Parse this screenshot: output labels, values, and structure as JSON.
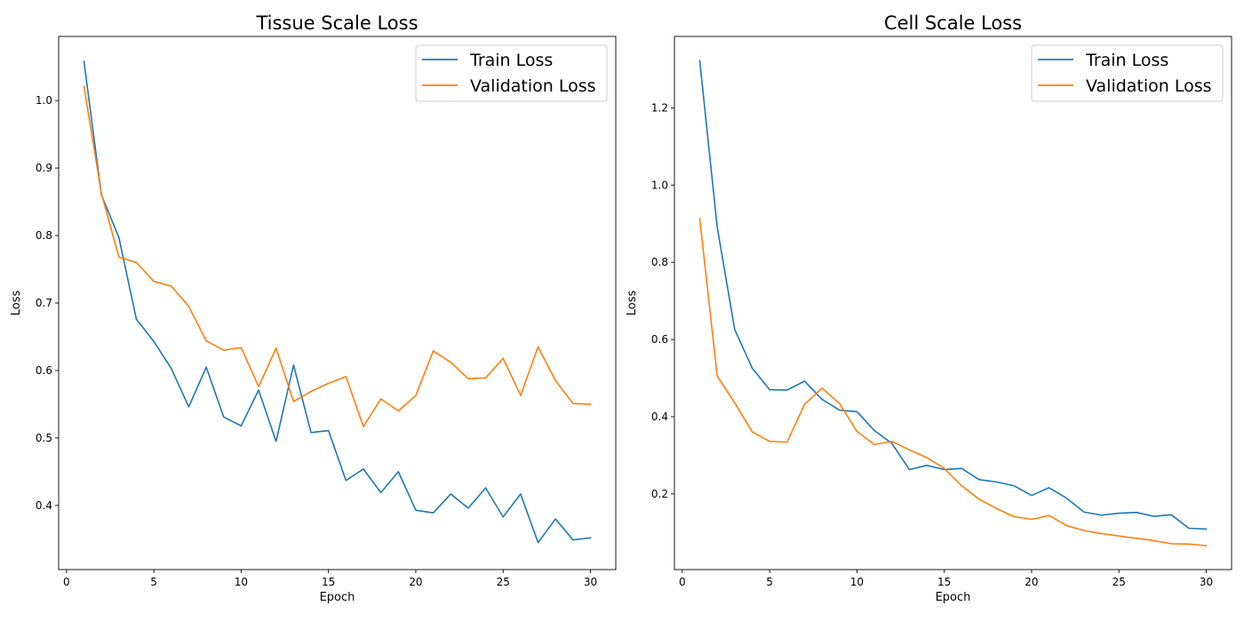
{
  "figure": {
    "background": "#ffffff"
  },
  "chart_data": [
    {
      "type": "line",
      "title": "Tissue Scale Loss",
      "xlabel": "Epoch",
      "ylabel": "Loss",
      "xlim": [
        -0.45,
        31.45
      ],
      "ylim": [
        0.305,
        1.095
      ],
      "xticks": [
        0,
        5,
        10,
        15,
        20,
        25,
        30
      ],
      "yticks": [
        0.4,
        0.5,
        0.6,
        0.7,
        0.8,
        0.9,
        1.0
      ],
      "ytick_labels": [
        "0.4",
        "0.5",
        "0.6",
        "0.7",
        "0.8",
        "0.9",
        "1.0"
      ],
      "grid": false,
      "legend_position": "upper right",
      "x": [
        1,
        2,
        3,
        4,
        5,
        6,
        7,
        8,
        9,
        10,
        11,
        12,
        13,
        14,
        15,
        16,
        17,
        18,
        19,
        20,
        21,
        22,
        23,
        24,
        25,
        26,
        27,
        28,
        29,
        30
      ],
      "series": [
        {
          "name": "Train Loss",
          "color": "#1f77b4",
          "values": [
            1.058,
            0.86,
            0.797,
            0.676,
            0.643,
            0.603,
            0.546,
            0.605,
            0.531,
            0.518,
            0.571,
            0.495,
            0.608,
            0.508,
            0.511,
            0.437,
            0.454,
            0.419,
            0.45,
            0.393,
            0.389,
            0.417,
            0.396,
            0.426,
            0.383,
            0.417,
            0.345,
            0.38,
            0.349,
            0.352
          ]
        },
        {
          "name": "Validation Loss",
          "color": "#ff7f0e",
          "values": [
            1.021,
            0.862,
            0.768,
            0.76,
            0.732,
            0.725,
            0.695,
            0.644,
            0.63,
            0.634,
            0.576,
            0.633,
            0.554,
            0.569,
            0.581,
            0.591,
            0.517,
            0.558,
            0.54,
            0.563,
            0.629,
            0.612,
            0.588,
            0.589,
            0.618,
            0.563,
            0.635,
            0.585,
            0.551,
            0.55
          ]
        }
      ]
    },
    {
      "type": "line",
      "title": "Cell Scale Loss",
      "xlabel": "Epoch",
      "ylabel": "Loss",
      "xlim": [
        -0.45,
        31.45
      ],
      "ylim": [
        0.004,
        1.385
      ],
      "xticks": [
        0,
        5,
        10,
        15,
        20,
        25,
        30
      ],
      "yticks": [
        0.2,
        0.4,
        0.6,
        0.8,
        1.0,
        1.2
      ],
      "ytick_labels": [
        "0.2",
        "0.4",
        "0.6",
        "0.8",
        "1.0",
        "1.2"
      ],
      "grid": false,
      "legend_position": "upper right",
      "x": [
        1,
        2,
        3,
        4,
        5,
        6,
        7,
        8,
        9,
        10,
        11,
        12,
        13,
        14,
        15,
        16,
        17,
        18,
        19,
        20,
        21,
        22,
        23,
        24,
        25,
        26,
        27,
        28,
        29,
        30
      ],
      "series": [
        {
          "name": "Train Loss",
          "color": "#1f77b4",
          "values": [
            1.322,
            0.891,
            0.626,
            0.526,
            0.47,
            0.469,
            0.492,
            0.445,
            0.417,
            0.413,
            0.364,
            0.331,
            0.263,
            0.274,
            0.263,
            0.266,
            0.237,
            0.231,
            0.221,
            0.196,
            0.216,
            0.189,
            0.153,
            0.145,
            0.15,
            0.152,
            0.142,
            0.146,
            0.111,
            0.109
          ]
        },
        {
          "name": "Validation Loss",
          "color": "#ff7f0e",
          "values": [
            0.913,
            0.505,
            0.436,
            0.361,
            0.336,
            0.334,
            0.432,
            0.474,
            0.434,
            0.362,
            0.328,
            0.336,
            0.314,
            0.294,
            0.266,
            0.221,
            0.186,
            0.162,
            0.141,
            0.134,
            0.144,
            0.118,
            0.105,
            0.097,
            0.091,
            0.085,
            0.079,
            0.071,
            0.07,
            0.066
          ]
        }
      ]
    }
  ]
}
